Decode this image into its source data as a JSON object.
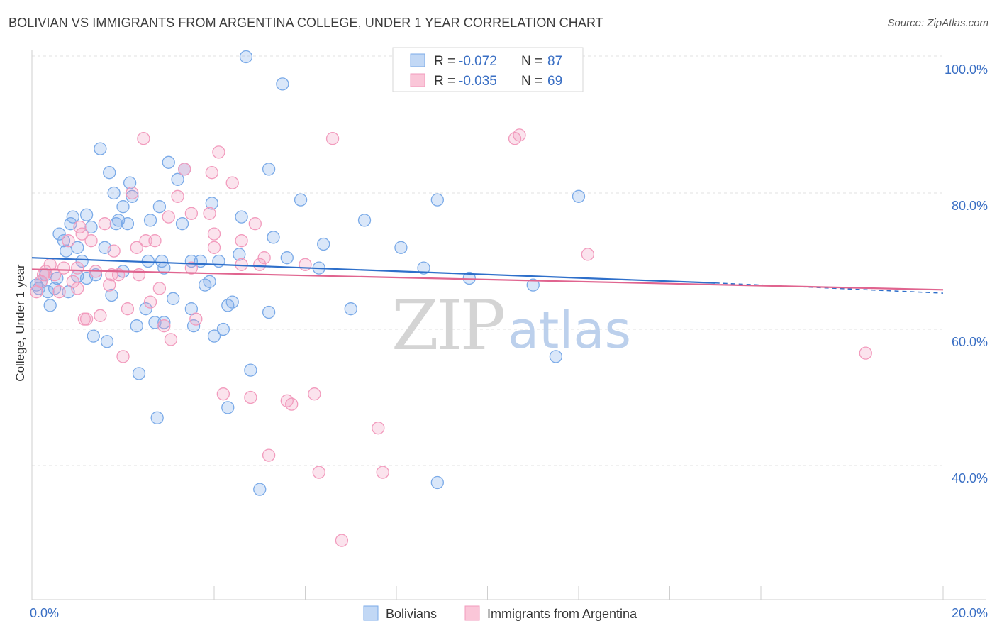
{
  "title": "BOLIVIAN VS IMMIGRANTS FROM ARGENTINA COLLEGE, UNDER 1 YEAR CORRELATION CHART",
  "source": "Source: ZipAtlas.com",
  "watermark": {
    "zip": "ZIP",
    "atlas": "atlas"
  },
  "chart_data": {
    "type": "scatter",
    "ylabel": "College, Under 1 year",
    "xlim": [
      0,
      20
    ],
    "ylim": [
      20,
      104
    ],
    "x_tick_labels": [
      {
        "value": 0,
        "label": "0.0%"
      },
      {
        "value": 20,
        "label": "20.0%"
      }
    ],
    "y_tick_labels": [
      {
        "value": 100,
        "label": "100.0%"
      },
      {
        "value": 80,
        "label": "80.0%"
      },
      {
        "value": 60,
        "label": "60.0%"
      },
      {
        "value": 40,
        "label": "40.0%"
      }
    ],
    "legend": [
      {
        "r_label": "R =",
        "r": "-0.072",
        "n_label": "N =",
        "n": "87"
      },
      {
        "r_label": "R =",
        "r": "-0.035",
        "n_label": "N =",
        "n": "69"
      }
    ],
    "series": [
      {
        "name": "Bolivians",
        "color": "#7aaae8",
        "line_color": "#2e6fca",
        "trend": {
          "x0": 0,
          "y0": 70.5,
          "x1": 15,
          "y1": 66.8,
          "dash_to": 20,
          "dash_y": 65.3
        },
        "points": [
          [
            0.1,
            66.5
          ],
          [
            0.15,
            66
          ],
          [
            0.2,
            67
          ],
          [
            0.3,
            68
          ],
          [
            0.35,
            65.5
          ],
          [
            0.4,
            63.5
          ],
          [
            0.5,
            66
          ],
          [
            0.6,
            74
          ],
          [
            0.7,
            73
          ],
          [
            0.75,
            71.5
          ],
          [
            0.8,
            65.5
          ],
          [
            0.85,
            75.5
          ],
          [
            0.9,
            76.5
          ],
          [
            1.0,
            72
          ],
          [
            1.0,
            67.8
          ],
          [
            1.1,
            70
          ],
          [
            1.2,
            76.8
          ],
          [
            1.3,
            75
          ],
          [
            1.35,
            59
          ],
          [
            1.4,
            68
          ],
          [
            1.5,
            86.5
          ],
          [
            1.6,
            72
          ],
          [
            1.65,
            58.2
          ],
          [
            1.7,
            83
          ],
          [
            1.75,
            65
          ],
          [
            1.8,
            80
          ],
          [
            1.85,
            75.5
          ],
          [
            1.9,
            76
          ],
          [
            2.0,
            78
          ],
          [
            2.0,
            68.5
          ],
          [
            2.1,
            75.5
          ],
          [
            2.15,
            81.5
          ],
          [
            2.2,
            79.5
          ],
          [
            2.3,
            60.5
          ],
          [
            2.35,
            53.5
          ],
          [
            2.5,
            63
          ],
          [
            2.55,
            70
          ],
          [
            2.6,
            76
          ],
          [
            2.7,
            61
          ],
          [
            2.75,
            47
          ],
          [
            2.8,
            78
          ],
          [
            2.85,
            70
          ],
          [
            2.9,
            61
          ],
          [
            3.0,
            84.5
          ],
          [
            3.1,
            64.5
          ],
          [
            3.2,
            82
          ],
          [
            3.3,
            75.5
          ],
          [
            3.35,
            83.5
          ],
          [
            3.5,
            70
          ],
          [
            3.5,
            63
          ],
          [
            3.55,
            60.5
          ],
          [
            3.8,
            66.5
          ],
          [
            3.9,
            67
          ],
          [
            3.95,
            78.5
          ],
          [
            4.0,
            59
          ],
          [
            4.1,
            70
          ],
          [
            4.3,
            48.5
          ],
          [
            4.3,
            63.5
          ],
          [
            4.4,
            64
          ],
          [
            4.55,
            71
          ],
          [
            4.6,
            76.5
          ],
          [
            4.7,
            100
          ],
          [
            4.8,
            54
          ],
          [
            5.0,
            36.5
          ],
          [
            5.2,
            83.5
          ],
          [
            5.2,
            62.5
          ],
          [
            5.3,
            73.5
          ],
          [
            5.5,
            96
          ],
          [
            5.6,
            70.5
          ],
          [
            5.9,
            79
          ],
          [
            6.3,
            69
          ],
          [
            6.4,
            72.5
          ],
          [
            7.0,
            63
          ],
          [
            7.3,
            76
          ],
          [
            8.1,
            72
          ],
          [
            8.6,
            69
          ],
          [
            8.9,
            79
          ],
          [
            8.9,
            37.5
          ],
          [
            9.6,
            67.5
          ],
          [
            11.0,
            66.5
          ],
          [
            11.5,
            56
          ],
          [
            12.0,
            79.5
          ],
          [
            3.7,
            70
          ],
          [
            2.9,
            69
          ],
          [
            1.2,
            67.5
          ],
          [
            0.55,
            67.5
          ],
          [
            4.2,
            60
          ]
        ]
      },
      {
        "name": "Immigrants from Argentina",
        "color": "#f29bbd",
        "line_color": "#e0648f",
        "trend": {
          "x0": 0,
          "y0": 68.8,
          "x1": 20,
          "y1": 65.8
        },
        "points": [
          [
            0.1,
            65.5
          ],
          [
            0.2,
            67
          ],
          [
            0.3,
            68.5
          ],
          [
            0.4,
            69.5
          ],
          [
            0.5,
            68
          ],
          [
            0.6,
            65.5
          ],
          [
            0.7,
            69
          ],
          [
            0.8,
            73
          ],
          [
            0.9,
            67
          ],
          [
            1.0,
            69
          ],
          [
            1.0,
            66
          ],
          [
            1.1,
            74
          ],
          [
            1.15,
            61.5
          ],
          [
            1.2,
            61.5
          ],
          [
            1.3,
            73
          ],
          [
            1.4,
            68.5
          ],
          [
            1.5,
            62
          ],
          [
            1.6,
            75.5
          ],
          [
            1.7,
            66.5
          ],
          [
            1.75,
            68
          ],
          [
            1.8,
            71.5
          ],
          [
            1.9,
            68
          ],
          [
            2.0,
            56
          ],
          [
            2.1,
            63
          ],
          [
            2.2,
            80
          ],
          [
            2.3,
            72
          ],
          [
            2.35,
            68
          ],
          [
            2.45,
            88
          ],
          [
            2.5,
            73
          ],
          [
            2.6,
            64
          ],
          [
            2.7,
            73
          ],
          [
            2.8,
            66
          ],
          [
            2.9,
            60.5
          ],
          [
            3.0,
            76.5
          ],
          [
            3.05,
            58.5
          ],
          [
            3.2,
            79.5
          ],
          [
            3.35,
            83.5
          ],
          [
            3.5,
            77
          ],
          [
            3.5,
            69
          ],
          [
            3.6,
            61.5
          ],
          [
            3.9,
            77
          ],
          [
            3.95,
            83
          ],
          [
            4.0,
            74
          ],
          [
            4.0,
            72
          ],
          [
            4.1,
            86
          ],
          [
            4.2,
            50.5
          ],
          [
            4.4,
            81.5
          ],
          [
            4.6,
            73
          ],
          [
            4.6,
            69.5
          ],
          [
            4.8,
            50
          ],
          [
            4.9,
            75.5
          ],
          [
            5.0,
            69.5
          ],
          [
            5.1,
            70.5
          ],
          [
            5.2,
            41.5
          ],
          [
            5.6,
            49.5
          ],
          [
            5.7,
            49
          ],
          [
            6.0,
            69.5
          ],
          [
            6.2,
            50.5
          ],
          [
            6.3,
            39
          ],
          [
            6.6,
            88
          ],
          [
            6.8,
            29
          ],
          [
            7.6,
            45.5
          ],
          [
            7.7,
            39
          ],
          [
            10.6,
            88
          ],
          [
            10.7,
            88.5
          ],
          [
            12.2,
            71
          ],
          [
            18.3,
            56.5
          ],
          [
            0.25,
            68
          ],
          [
            1.05,
            75
          ]
        ]
      }
    ]
  }
}
